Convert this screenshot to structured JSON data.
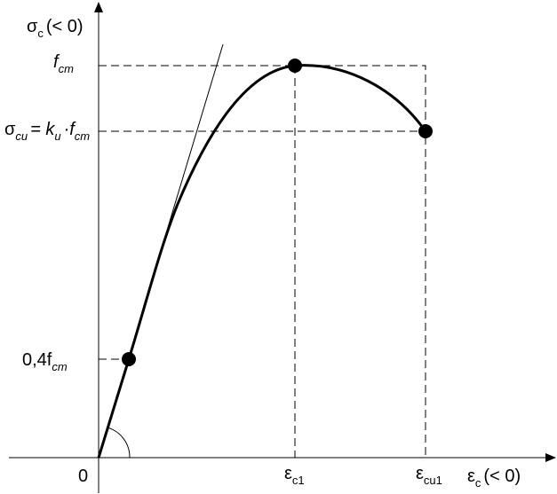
{
  "labels": {
    "y_axis": [
      "σ",
      "c",
      "(< 0)"
    ],
    "fcm": [
      "f",
      "cm"
    ],
    "sigma_cu": [
      "σ",
      "cu",
      "= k",
      "u",
      "·f",
      "cm"
    ],
    "fcm_04": [
      "0,4f",
      "cm"
    ],
    "origin": "0",
    "eps_c1": [
      "ε",
      "c1"
    ],
    "eps_cu1": [
      "ε",
      "cu1"
    ],
    "x_axis": [
      "ε",
      "c",
      "(< 0)"
    ]
  }
}
